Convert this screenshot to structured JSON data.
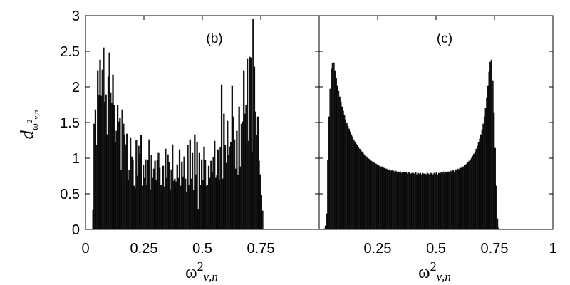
{
  "chart_data": [
    {
      "type": "bar",
      "panel_label": "(b)",
      "xlabel": {
        "base": "ω",
        "exp": "2",
        "sub": "ν,n"
      },
      "ylabel": {
        "base": "d",
        "sub_base": "ω",
        "sub_exp": "2",
        "sub_sub": "ν,n"
      },
      "xlim": [
        0,
        1
      ],
      "ylim": [
        0,
        3
      ],
      "xticks": [
        0,
        0.25,
        0.5,
        0.75
      ],
      "xtick_labels": [
        "0",
        "0.25",
        "0.5",
        "0.75"
      ],
      "yticks": [
        0,
        0.5,
        1,
        1.5,
        2,
        2.5,
        3
      ],
      "ytick_labels": [
        "0",
        "0.5",
        "1",
        "1.5",
        "2",
        "2.5",
        "3"
      ],
      "bin_width": 0.005,
      "x_start": 0.03,
      "values": [
        0.27,
        1.48,
        1.68,
        1.18,
        2.23,
        1.88,
        2.38,
        1.87,
        2.24,
        2.55,
        1.79,
        1.89,
        1.33,
        2.14,
        2.48,
        1.92,
        1.77,
        2.17,
        1.74,
        1.22,
        1.38,
        1.74,
        1.51,
        1.56,
        0.83,
        1.68,
        1.48,
        1.33,
        1.19,
        1.34,
        0.69,
        0.83,
        1.29,
        1.02,
        0.98,
        0.61,
        0.57,
        1.25,
        0.75,
        1.17,
        1.06,
        1.32,
        0.61,
        0.9,
        0.72,
        0.98,
        0.62,
        0.97,
        1.26,
        0.56,
        1.04,
        0.72,
        0.85,
        0.96,
        0.69,
        0.97,
        1.07,
        0.86,
        0.62,
        0.53,
        0.89,
        0.6,
        1.13,
        0.72,
        1.05,
        0.94,
        0.56,
        0.84,
        1.19,
        0.68,
        0.71,
        0.67,
        0.91,
        0.72,
        1.12,
        0.61,
        0.95,
        0.74,
        1.02,
        0.71,
        0.52,
        1.18,
        0.62,
        1.26,
        0.71,
        1.07,
        0.55,
        1.33,
        0.77,
        1.22,
        0.28,
        1.07,
        0.62,
        0.98,
        0.69,
        1.16,
        0.97,
        0.61,
        0.62,
        0.89,
        0.72,
        0.96,
        0.8,
        1.01,
        1.24,
        0.72,
        0.76,
        1.12,
        0.69,
        1.15,
        2.03,
        0.71,
        1.62,
        1.18,
        0.93,
        1.52,
        1.04,
        1.16,
        1.22,
        2.02,
        1.58,
        1.26,
        0.85,
        1.38,
        0.76,
        1.72,
        0.88,
        1.48,
        1.51,
        2.23,
        1.62,
        1.74,
        2.39,
        1.24,
        2.42,
        2.41,
        1.08,
        2.95,
        2.28,
        1.65,
        1.32,
        1.58,
        0.96,
        0.77,
        0.48,
        0.26
      ]
    },
    {
      "type": "bar",
      "panel_label": "(c)",
      "xlabel": {
        "base": "ω",
        "exp": "2",
        "sub": "ν,n"
      },
      "xlim": [
        0,
        1
      ],
      "ylim": [
        0,
        3
      ],
      "xticks": [
        0.25,
        0.5,
        0.75,
        1
      ],
      "xtick_labels": [
        "0.25",
        "0.5",
        "0.75",
        "1"
      ],
      "bin_width": 0.005,
      "x_start": 0.02,
      "values": [
        0.01,
        0.05,
        0.22,
        0.97,
        1.58,
        1.97,
        2.25,
        2.33,
        2.34,
        2.23,
        2.12,
        2.02,
        1.94,
        1.86,
        1.79,
        1.72,
        1.66,
        1.6,
        1.54,
        1.49,
        1.45,
        1.41,
        1.37,
        1.33,
        1.3,
        1.26,
        1.23,
        1.2,
        1.18,
        1.15,
        1.13,
        1.11,
        1.09,
        1.07,
        1.05,
        1.03,
        1.02,
        1.0,
        0.99,
        0.97,
        0.96,
        0.95,
        0.94,
        0.93,
        0.92,
        0.91,
        0.9,
        0.89,
        0.88,
        0.88,
        0.87,
        0.86,
        0.85,
        0.85,
        0.84,
        0.83,
        0.84,
        0.82,
        0.83,
        0.82,
        0.81,
        0.82,
        0.8,
        0.81,
        0.8,
        0.81,
        0.79,
        0.8,
        0.8,
        0.79,
        0.8,
        0.78,
        0.8,
        0.79,
        0.78,
        0.79,
        0.79,
        0.78,
        0.8,
        0.77,
        0.79,
        0.78,
        0.79,
        0.77,
        0.79,
        0.78,
        0.78,
        0.77,
        0.79,
        0.78,
        0.76,
        0.79,
        0.78,
        0.77,
        0.79,
        0.78,
        0.8,
        0.77,
        0.79,
        0.78,
        0.8,
        0.79,
        0.81,
        0.78,
        0.8,
        0.79,
        0.81,
        0.8,
        0.82,
        0.8,
        0.83,
        0.81,
        0.84,
        0.83,
        0.85,
        0.84,
        0.86,
        0.86,
        0.88,
        0.88,
        0.9,
        0.91,
        0.92,
        0.94,
        0.96,
        0.98,
        1.0,
        1.03,
        1.06,
        1.09,
        1.13,
        1.17,
        1.22,
        1.27,
        1.33,
        1.4,
        1.48,
        1.58,
        1.7,
        1.85,
        2.02,
        2.21,
        2.35,
        2.38,
        2.09,
        1.64,
        1.14,
        0.61,
        0.15,
        0.02
      ]
    }
  ]
}
